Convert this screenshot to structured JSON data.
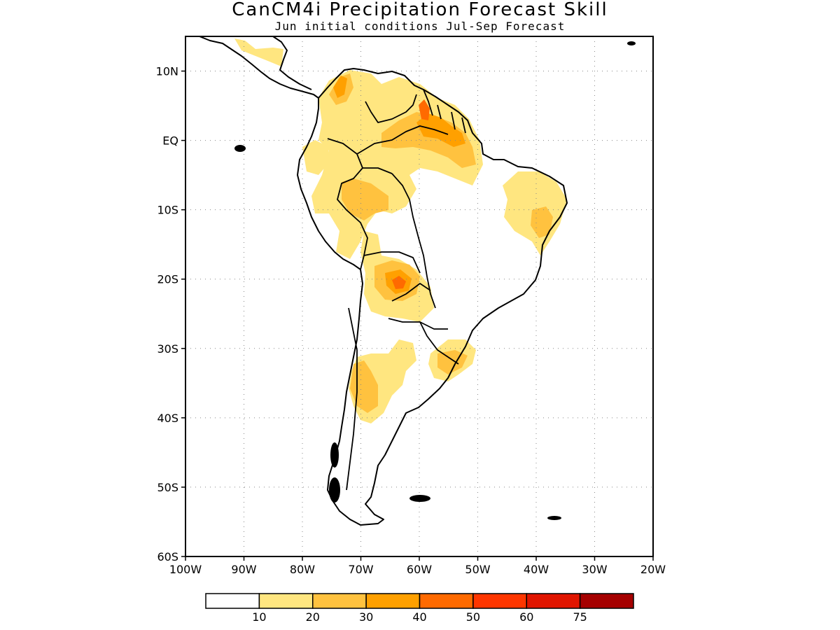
{
  "title": "CanCM4i Precipitation Forecast Skill",
  "subtitle": "Jun initial conditions   Jul-Sep Forecast",
  "map": {
    "region": "South America",
    "lon_range": [
      -100,
      -20
    ],
    "lat_range": [
      -60,
      15
    ],
    "lat_ticks": [
      {
        "value": 10,
        "label": "10N"
      },
      {
        "value": 0,
        "label": "EQ"
      },
      {
        "value": -10,
        "label": "10S"
      },
      {
        "value": -20,
        "label": "20S"
      },
      {
        "value": -30,
        "label": "30S"
      },
      {
        "value": -40,
        "label": "40S"
      },
      {
        "value": -50,
        "label": "50S"
      },
      {
        "value": -60,
        "label": "60S"
      }
    ],
    "lon_ticks": [
      {
        "value": -100,
        "label": "100W"
      },
      {
        "value": -90,
        "label": "90W"
      },
      {
        "value": -80,
        "label": "80W"
      },
      {
        "value": -70,
        "label": "70W"
      },
      {
        "value": -60,
        "label": "60W"
      },
      {
        "value": -50,
        "label": "50W"
      },
      {
        "value": -40,
        "label": "40W"
      },
      {
        "value": -30,
        "label": "30W"
      },
      {
        "value": -20,
        "label": "20W"
      }
    ],
    "grid": "dotted"
  },
  "colorbar": {
    "labels": [
      "10",
      "20",
      "30",
      "40",
      "50",
      "60",
      "75"
    ],
    "colors": [
      "#ffffff",
      "#ffe680",
      "#ffc23f",
      "#ffa000",
      "#ff6a00",
      "#ff3600",
      "#e01500",
      "#a50000"
    ]
  },
  "skill_regions": [
    {
      "level": 1,
      "lat": 8,
      "lon": -66,
      "name": "northern-south-america"
    },
    {
      "level": 1,
      "lat": -6,
      "lon": -38,
      "name": "northeast-brazil"
    },
    {
      "level": 1,
      "lat": -20,
      "lon": -62,
      "name": "bolivia-paraguay"
    },
    {
      "level": 1,
      "lat": -35,
      "lon": -67,
      "name": "central-argentina"
    },
    {
      "level": 1,
      "lat": -31,
      "lon": -54,
      "name": "uruguay"
    },
    {
      "level": 3,
      "lat": 6,
      "lon": -56,
      "name": "guianas"
    },
    {
      "level": 4,
      "lat": -20,
      "lon": -64,
      "name": "bolivia-core"
    }
  ]
}
